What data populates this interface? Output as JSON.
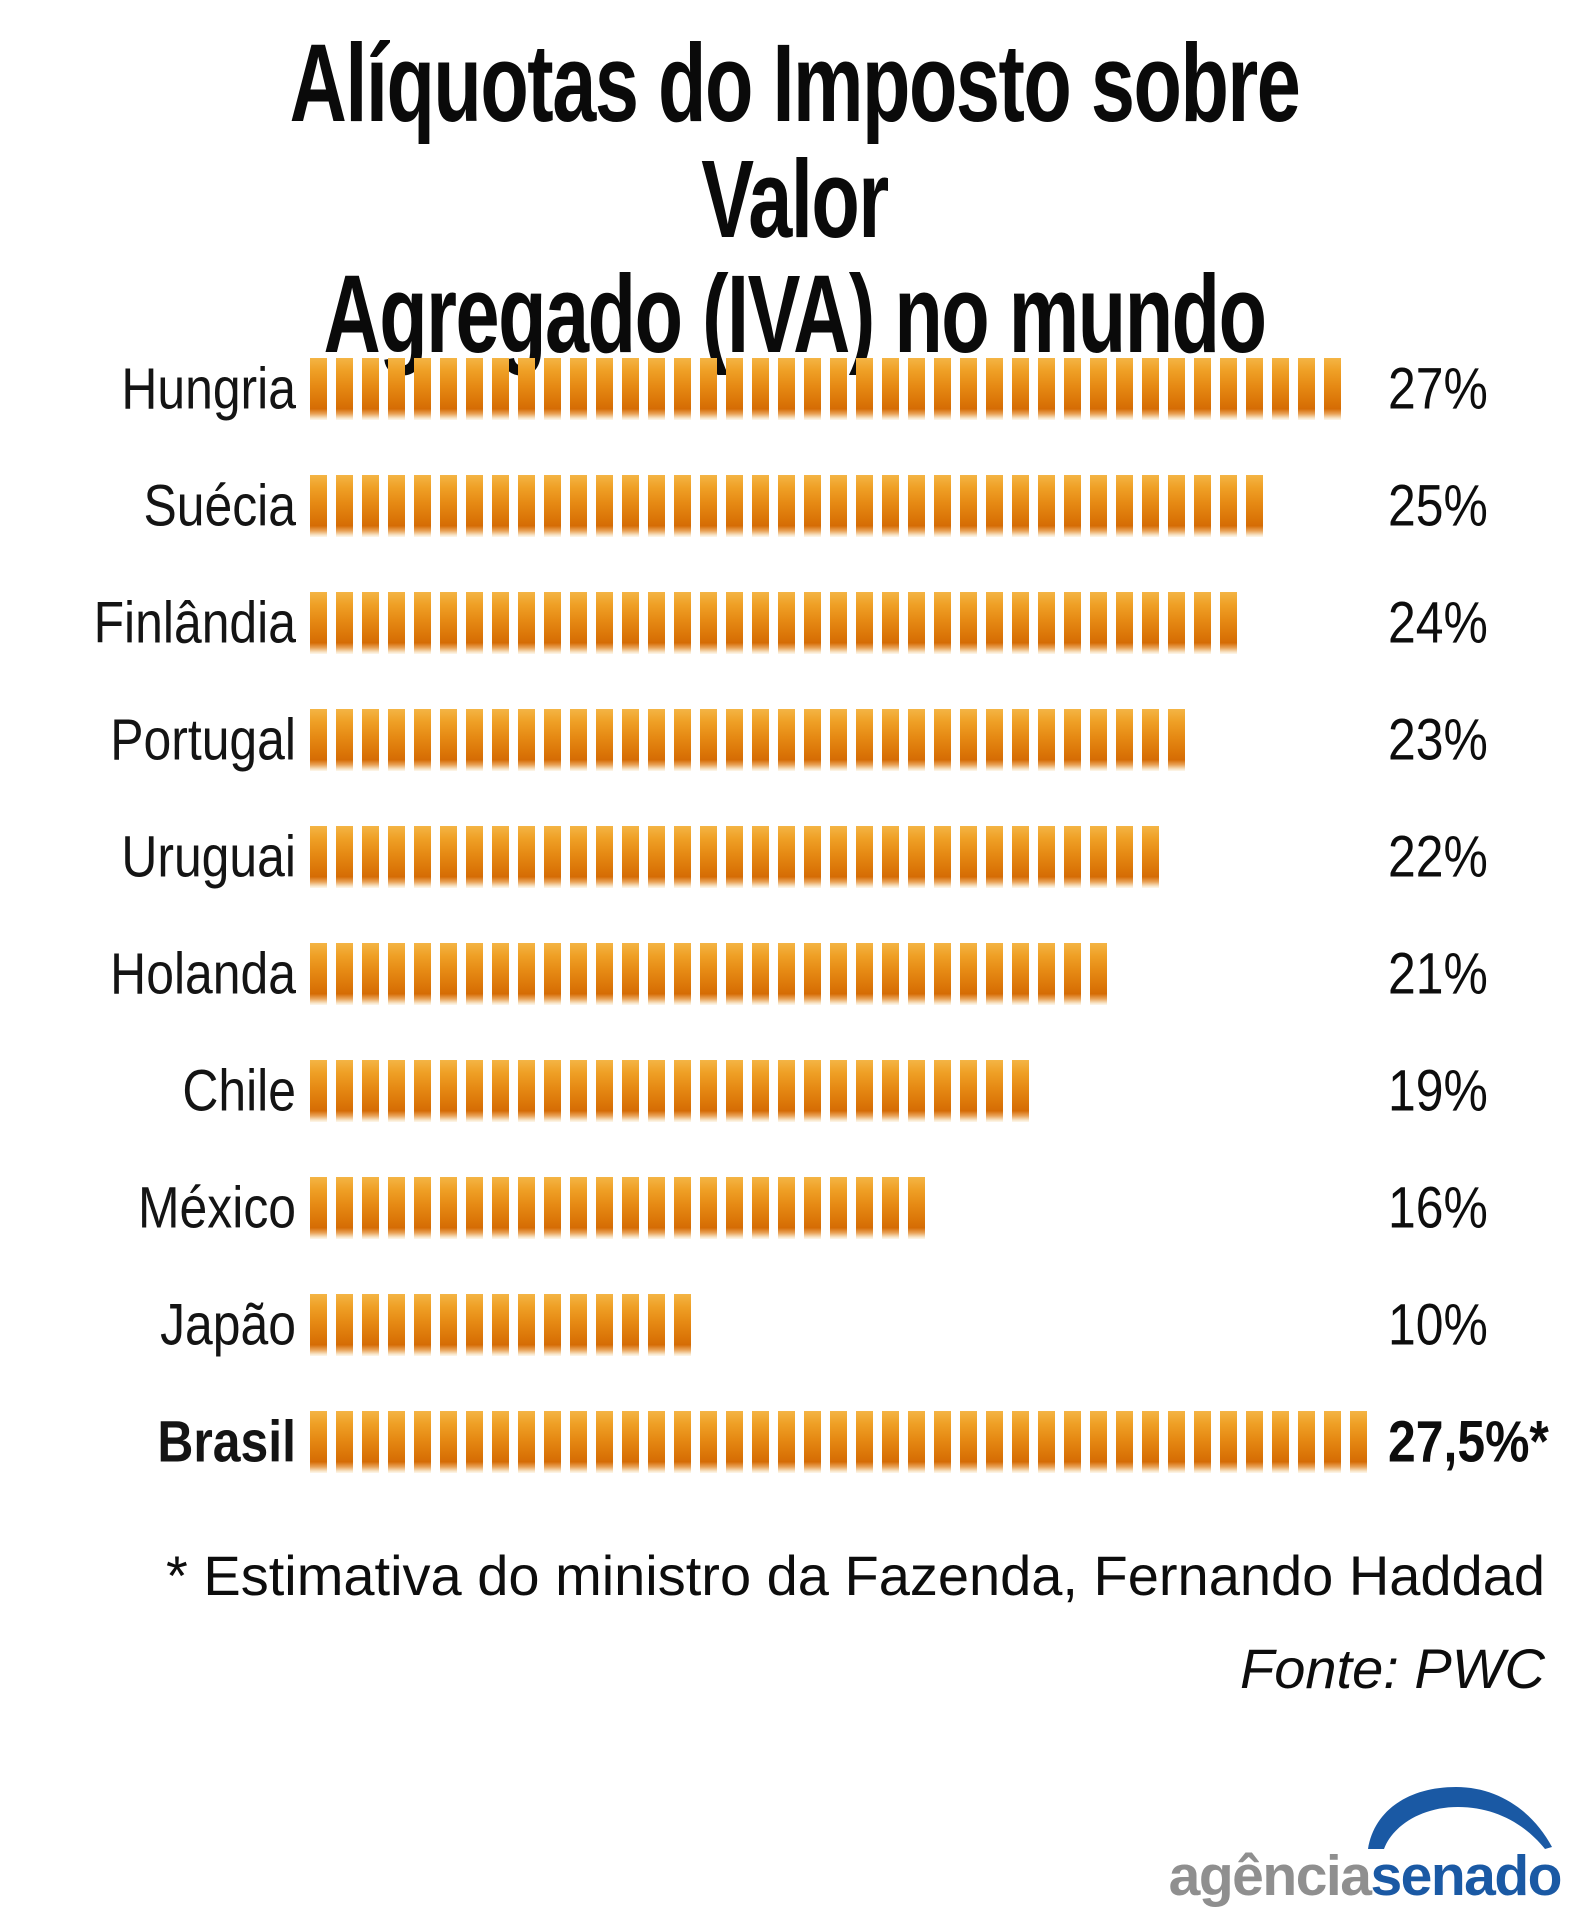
{
  "title": {
    "line1": "Alíquotas do Imposto sobre Valor",
    "line2": "Agregado (IVA) no mundo"
  },
  "chart_data": {
    "type": "bar",
    "title": "Alíquotas do Imposto sobre Valor Agregado (IVA) no mundo",
    "orientation": "horizontal",
    "bar_style": "segmented-gradient-blocks",
    "categories": [
      "Hungria",
      "Suécia",
      "Finlândia",
      "Portugal",
      "Uruguai",
      "Holanda",
      "Chile",
      "México",
      "Japão",
      "Brasil"
    ],
    "values": [
      27,
      25,
      24,
      23,
      22,
      21,
      19,
      16,
      10,
      27.5
    ],
    "value_labels": [
      "27%",
      "25%",
      "24%",
      "23%",
      "22%",
      "21%",
      "19%",
      "16%",
      "10%",
      "27,5%*"
    ],
    "unit": "%",
    "xlim": [
      0,
      28
    ],
    "grid": false,
    "legend": false,
    "highlight_category": "Brasil",
    "segments_per_unit": 1.5,
    "segment_color_top": "#efa026",
    "segment_color_bottom": "#d56c05",
    "footnote": "* Estimativa do ministro da Fazenda, Fernando Haddad",
    "source": "Fonte: PWC"
  },
  "notes": {
    "footnote": "* Estimativa do ministro da Fazenda, Fernando Haddad",
    "source": "Fonte: PWC"
  },
  "logo": {
    "prefix": "agência",
    "suffix": "senado",
    "prefix_color": "#8f8f8f",
    "suffix_color": "#1a59a4"
  }
}
